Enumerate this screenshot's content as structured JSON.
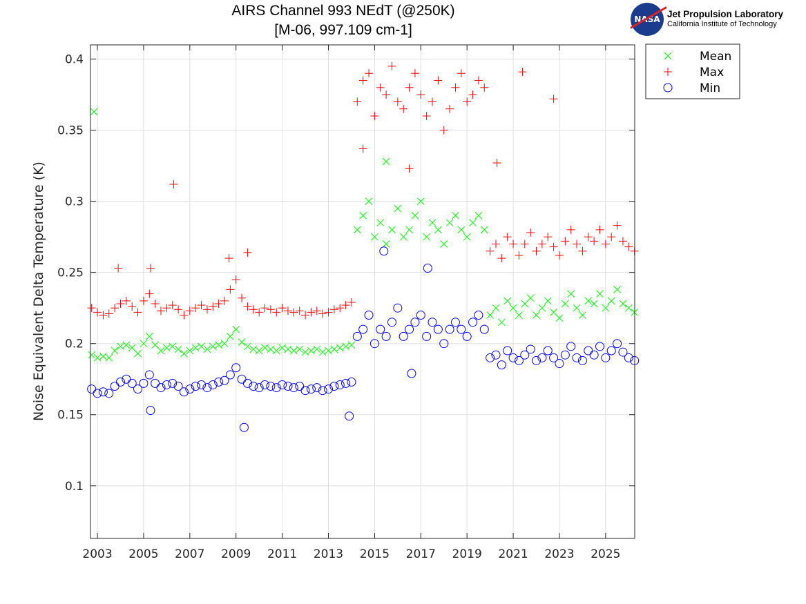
{
  "chart_data": {
    "type": "scatter",
    "title": [
      "AIRS Channel 993 NEdT (@250K)",
      "[M-06, 997.109 cm-1]"
    ],
    "xlabel": "",
    "ylabel": "Noise Equivalent Delta Temperature (K)",
    "xlim": [
      2002.7,
      2026.26
    ],
    "ylim": [
      0.063,
      0.41
    ],
    "xticks": [
      2003,
      2005,
      2007,
      2009,
      2011,
      2013,
      2015,
      2017,
      2019,
      2021,
      2023,
      2025
    ],
    "xtick_labels": [
      "2003",
      "2005",
      "2007",
      "2009",
      "2011",
      "2013",
      "2015",
      "2017",
      "2019",
      "2021",
      "2023",
      "2025"
    ],
    "yticks": [
      0.1,
      0.15,
      0.2,
      0.25,
      0.3,
      0.35,
      0.4
    ],
    "ytick_labels": [
      "0.1",
      "0.15",
      "0.2",
      "0.25",
      "0.3",
      "0.35",
      "0.4"
    ],
    "grid": true,
    "legend_placement": "outside-top-right",
    "x": [
      2002.75,
      2003.0,
      2003.25,
      2003.5,
      2003.75,
      2004.0,
      2004.25,
      2004.5,
      2004.75,
      2005.0,
      2005.25,
      2005.5,
      2005.75,
      2006.0,
      2006.25,
      2006.5,
      2006.75,
      2007.0,
      2007.25,
      2007.5,
      2007.75,
      2008.0,
      2008.25,
      2008.5,
      2008.75,
      2009.0,
      2009.25,
      2009.5,
      2009.75,
      2010.0,
      2010.25,
      2010.5,
      2010.75,
      2011.0,
      2011.25,
      2011.5,
      2011.75,
      2012.0,
      2012.25,
      2012.5,
      2012.75,
      2013.0,
      2013.25,
      2013.5,
      2013.75,
      2014.0,
      2014.25,
      2014.5,
      2014.75,
      2015.0,
      2015.25,
      2015.5,
      2015.75,
      2016.0,
      2016.25,
      2016.5,
      2016.75,
      2017.0,
      2017.25,
      2017.5,
      2017.75,
      2018.0,
      2018.25,
      2018.5,
      2018.75,
      2019.0,
      2019.25,
      2019.5,
      2019.75,
      2020.0,
      2020.25,
      2020.5,
      2020.75,
      2021.0,
      2021.25,
      2021.5,
      2021.75,
      2022.0,
      2022.25,
      2022.5,
      2022.75,
      2023.0,
      2023.25,
      2023.5,
      2023.75,
      2024.0,
      2024.25,
      2024.5,
      2024.75,
      2025.0,
      2025.25,
      2025.5,
      2025.75,
      2026.0,
      2026.25
    ],
    "series": [
      {
        "name": "Mean",
        "marker": "x",
        "color": "#00ff00",
        "values": [
          0.192,
          0.19,
          0.191,
          0.19,
          0.195,
          0.198,
          0.199,
          0.197,
          0.193,
          0.2,
          0.205,
          0.199,
          0.195,
          0.197,
          0.198,
          0.196,
          0.193,
          0.195,
          0.197,
          0.198,
          0.196,
          0.198,
          0.199,
          0.2,
          0.205,
          0.21,
          0.201,
          0.198,
          0.196,
          0.195,
          0.197,
          0.196,
          0.195,
          0.197,
          0.196,
          0.195,
          0.196,
          0.194,
          0.195,
          0.196,
          0.194,
          0.195,
          0.196,
          0.197,
          0.198,
          0.199,
          0.28,
          0.29,
          0.3,
          0.275,
          0.285,
          0.27,
          0.28,
          0.295,
          0.275,
          0.28,
          0.29,
          0.3,
          0.275,
          0.285,
          0.28,
          0.27,
          0.285,
          0.29,
          0.28,
          0.275,
          0.285,
          0.29,
          0.28,
          0.22,
          0.225,
          0.215,
          0.23,
          0.225,
          0.22,
          0.228,
          0.232,
          0.22,
          0.225,
          0.23,
          0.222,
          0.218,
          0.228,
          0.235,
          0.225,
          0.22,
          0.23,
          0.228,
          0.235,
          0.225,
          0.23,
          0.238,
          0.228,
          0.225,
          0.222
        ],
        "outliers": [
          {
            "x": 2002.85,
            "y": 0.363
          },
          {
            "x": 2015.5,
            "y": 0.328
          }
        ]
      },
      {
        "name": "Max",
        "marker": "+",
        "color": "#ff0000",
        "values": [
          0.225,
          0.222,
          0.22,
          0.221,
          0.225,
          0.228,
          0.23,
          0.226,
          0.222,
          0.23,
          0.235,
          0.228,
          0.223,
          0.225,
          0.227,
          0.224,
          0.22,
          0.223,
          0.225,
          0.227,
          0.224,
          0.226,
          0.228,
          0.23,
          0.238,
          0.245,
          0.232,
          0.226,
          0.224,
          0.222,
          0.225,
          0.224,
          0.222,
          0.225,
          0.223,
          0.222,
          0.223,
          0.22,
          0.222,
          0.223,
          0.221,
          0.222,
          0.224,
          0.225,
          0.227,
          0.229,
          0.37,
          0.385,
          0.39,
          0.36,
          0.38,
          0.375,
          0.395,
          0.37,
          0.365,
          0.38,
          0.39,
          0.375,
          0.36,
          0.37,
          0.385,
          0.35,
          0.365,
          0.38,
          0.39,
          0.37,
          0.375,
          0.385,
          0.38,
          0.265,
          0.27,
          0.26,
          0.275,
          0.27,
          0.262,
          0.27,
          0.278,
          0.265,
          0.27,
          0.275,
          0.268,
          0.262,
          0.272,
          0.28,
          0.27,
          0.265,
          0.275,
          0.272,
          0.28,
          0.27,
          0.275,
          0.283,
          0.272,
          0.268,
          0.265
        ],
        "outliers": [
          {
            "x": 2006.3,
            "y": 0.312
          },
          {
            "x": 2003.9,
            "y": 0.253
          },
          {
            "x": 2005.3,
            "y": 0.253
          },
          {
            "x": 2008.7,
            "y": 0.26
          },
          {
            "x": 2009.5,
            "y": 0.264
          },
          {
            "x": 2021.4,
            "y": 0.391
          },
          {
            "x": 2022.75,
            "y": 0.372
          },
          {
            "x": 2014.5,
            "y": 0.337
          },
          {
            "x": 2016.5,
            "y": 0.323
          },
          {
            "x": 2020.3,
            "y": 0.327
          }
        ]
      },
      {
        "name": "Min",
        "marker": "o",
        "color": "#0000ff",
        "values": [
          0.168,
          0.165,
          0.166,
          0.165,
          0.17,
          0.173,
          0.175,
          0.172,
          0.168,
          0.172,
          0.178,
          0.172,
          0.169,
          0.171,
          0.172,
          0.17,
          0.166,
          0.168,
          0.17,
          0.171,
          0.169,
          0.171,
          0.173,
          0.174,
          0.178,
          0.183,
          0.175,
          0.172,
          0.17,
          0.169,
          0.171,
          0.17,
          0.169,
          0.171,
          0.17,
          0.169,
          0.17,
          0.167,
          0.168,
          0.169,
          0.167,
          0.168,
          0.17,
          0.171,
          0.172,
          0.173,
          0.205,
          0.21,
          0.22,
          0.2,
          0.21,
          0.205,
          0.215,
          0.225,
          0.205,
          0.21,
          0.215,
          0.22,
          0.205,
          0.215,
          0.21,
          0.2,
          0.21,
          0.215,
          0.21,
          0.205,
          0.215,
          0.22,
          0.21,
          0.19,
          0.192,
          0.185,
          0.195,
          0.19,
          0.188,
          0.192,
          0.196,
          0.188,
          0.19,
          0.195,
          0.19,
          0.186,
          0.192,
          0.198,
          0.19,
          0.188,
          0.195,
          0.192,
          0.198,
          0.19,
          0.195,
          0.2,
          0.194,
          0.19,
          0.188
        ],
        "outliers": [
          {
            "x": 2009.35,
            "y": 0.141
          },
          {
            "x": 2013.9,
            "y": 0.149
          },
          {
            "x": 2015.4,
            "y": 0.265
          },
          {
            "x": 2005.3,
            "y": 0.153
          },
          {
            "x": 2016.6,
            "y": 0.179
          },
          {
            "x": 2017.3,
            "y": 0.253
          }
        ]
      }
    ]
  },
  "logo": {
    "line1": "Jet Propulsion Laboratory",
    "line2": "California Institute of Technology",
    "badge": "NASA"
  }
}
